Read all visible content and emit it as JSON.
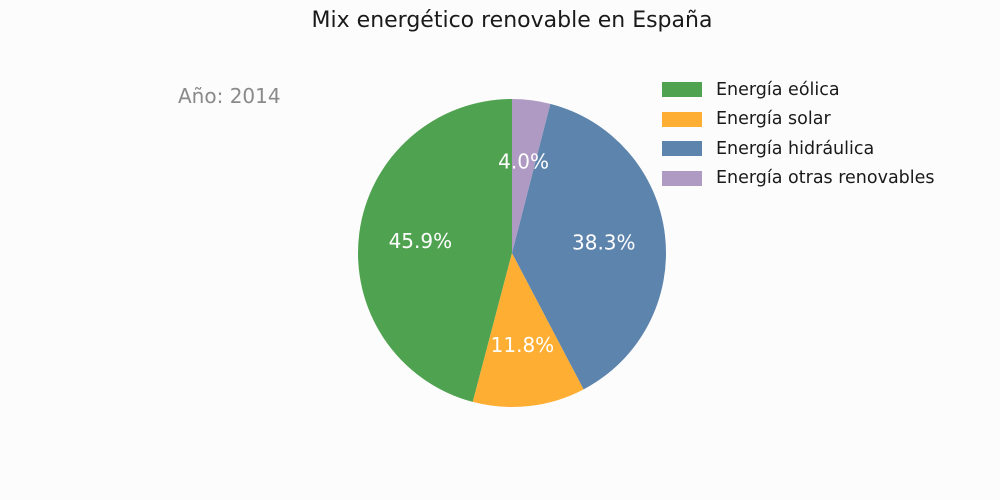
{
  "chart_data": {
    "type": "pie",
    "title": "Mix energético renovable en España",
    "annotation": "Año: 2014",
    "slices": [
      {
        "label": "Energía eólica",
        "value": 45.9,
        "display": "45.9%",
        "color": "#4fa24f"
      },
      {
        "label": "Energía solar",
        "value": 11.8,
        "display": "11.8%",
        "color": "#fdae33"
      },
      {
        "label": "Energía hidráulica",
        "value": 38.3,
        "display": "38.3%",
        "color": "#5d84ad"
      },
      {
        "label": "Energía otras renovables",
        "value": 4.0,
        "display": "4.0%",
        "color": "#ae9ac3"
      }
    ],
    "legend_position": "top-right",
    "start_angle_deg": 90,
    "direction": "counterclockwise"
  }
}
